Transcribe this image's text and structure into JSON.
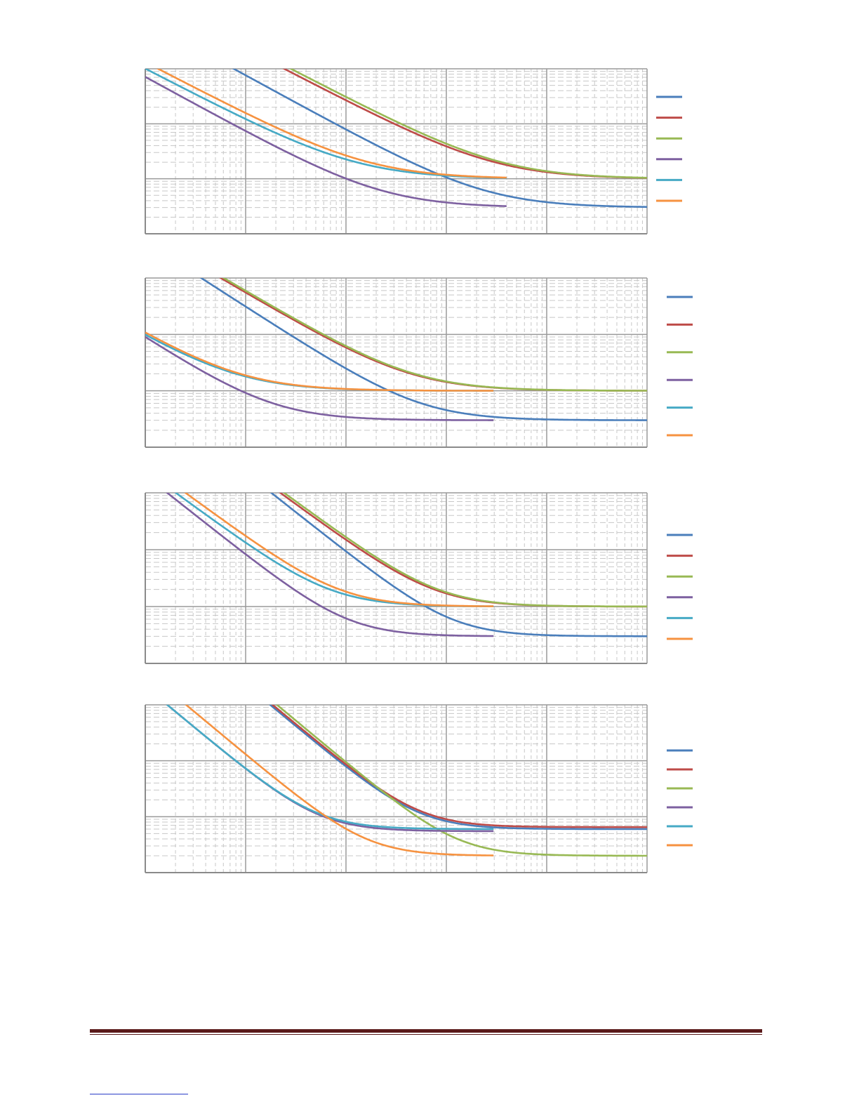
{
  "page": {
    "background": "#ffffff",
    "rule_color": "#5a1a1a",
    "link_color": "#2a3cc7"
  },
  "series_colors": [
    "#4a7ebb",
    "#be4b48",
    "#98b954",
    "#7d60a0",
    "#46aac5",
    "#f69240"
  ],
  "chart_data": [
    {
      "type": "line",
      "title": "",
      "xlabel": "",
      "ylabel": "",
      "xscale": "log",
      "yscale": "log",
      "xlim": [
        1,
        100000
      ],
      "ylim": [
        0.1,
        100
      ],
      "grid": true,
      "legend": "right",
      "series": [
        {
          "color": "#4a7ebb",
          "asymptote": 0.3,
          "x0": 7.6,
          "y0": 100,
          "n": 1.0,
          "xmax": 100000
        },
        {
          "color": "#be4b48",
          "asymptote": 1.0,
          "x0": 24,
          "y0": 100,
          "n": 0.95,
          "xmax": 100000
        },
        {
          "color": "#98b954",
          "asymptote": 1.0,
          "x0": 28,
          "y0": 100,
          "n": 0.95,
          "xmax": 100000
        },
        {
          "color": "#7d60a0",
          "asymptote": 0.3,
          "x0": 0.71,
          "y0": 100,
          "n": 1.0,
          "xmax": 4000
        },
        {
          "color": "#46aac5",
          "asymptote": 1.0,
          "x0": 1.0,
          "y0": 100,
          "n": 0.95,
          "xmax": 4000
        },
        {
          "color": "#f69240",
          "asymptote": 1.0,
          "x0": 1.33,
          "y0": 100,
          "n": 0.95,
          "xmax": 4000
        }
      ]
    },
    {
      "type": "line",
      "title": "",
      "xlabel": "",
      "ylabel": "",
      "xscale": "log",
      "yscale": "log",
      "xlim": [
        1,
        100000
      ],
      "ylim": [
        0.1,
        100
      ],
      "grid": true,
      "legend": "right",
      "series": [
        {
          "color": "#4a7ebb",
          "asymptote": 0.3,
          "x0": 3.6,
          "y0": 100,
          "n": 1.15,
          "xmax": 100000
        },
        {
          "color": "#be4b48",
          "asymptote": 1.0,
          "x0": 5.6,
          "y0": 100,
          "n": 1.05,
          "xmax": 100000
        },
        {
          "color": "#98b954",
          "asymptote": 1.0,
          "x0": 6.0,
          "y0": 100,
          "n": 1.05,
          "xmax": 100000
        },
        {
          "color": "#7d60a0",
          "asymptote": 0.3,
          "x0": 0.12,
          "y0": 100,
          "n": 1.15,
          "xmax": 3000
        },
        {
          "color": "#46aac5",
          "asymptote": 1.0,
          "x0": 0.1,
          "y0": 100,
          "n": 1.05,
          "xmax": 3000
        },
        {
          "color": "#f69240",
          "asymptote": 1.0,
          "x0": 0.11,
          "y0": 100,
          "n": 1.05,
          "xmax": 3000
        }
      ]
    },
    {
      "type": "line",
      "title": "",
      "xlabel": "",
      "ylabel": "",
      "xscale": "log",
      "yscale": "log",
      "xlim": [
        1,
        100000
      ],
      "ylim": [
        0.1,
        100
      ],
      "grid": true,
      "legend": "right",
      "series": [
        {
          "color": "#4a7ebb",
          "asymptote": 0.3,
          "x0": 18,
          "y0": 100,
          "n": 1.4,
          "xmax": 100000
        },
        {
          "color": "#be4b48",
          "asymptote": 1.0,
          "x0": 22,
          "y0": 100,
          "n": 1.3,
          "xmax": 100000
        },
        {
          "color": "#98b954",
          "asymptote": 1.0,
          "x0": 24,
          "y0": 100,
          "n": 1.3,
          "xmax": 100000
        },
        {
          "color": "#7d60a0",
          "asymptote": 0.3,
          "x0": 1.65,
          "y0": 100,
          "n": 1.4,
          "xmax": 3000
        },
        {
          "color": "#46aac5",
          "asymptote": 1.0,
          "x0": 2.0,
          "y0": 100,
          "n": 1.3,
          "xmax": 3000
        },
        {
          "color": "#f69240",
          "asymptote": 1.0,
          "x0": 2.5,
          "y0": 100,
          "n": 1.3,
          "xmax": 3000
        }
      ]
    },
    {
      "type": "line",
      "title": "",
      "xlabel": "",
      "ylabel": "",
      "xscale": "log",
      "yscale": "log",
      "xlim": [
        1,
        100000
      ],
      "ylim": [
        0.1,
        100
      ],
      "grid": true,
      "legend": "right",
      "series": [
        {
          "color": "#4a7ebb",
          "asymptote": 0.6,
          "x0": 17.5,
          "y0": 100,
          "n": 1.5,
          "xmax": 100000
        },
        {
          "color": "#be4b48",
          "asymptote": 0.65,
          "x0": 18.5,
          "y0": 100,
          "n": 1.5,
          "xmax": 100000
        },
        {
          "color": "#98b954",
          "asymptote": 0.2,
          "x0": 20.5,
          "y0": 100,
          "n": 1.5,
          "xmax": 100000
        },
        {
          "color": "#7d60a0",
          "asymptote": 0.55,
          "x0": 1.65,
          "y0": 100,
          "n": 1.5,
          "xmax": 3000
        },
        {
          "color": "#46aac5",
          "asymptote": 0.6,
          "x0": 1.65,
          "y0": 100,
          "n": 1.5,
          "xmax": 3000
        },
        {
          "color": "#f69240",
          "asymptote": 0.2,
          "x0": 2.55,
          "y0": 100,
          "n": 1.5,
          "xmax": 3000
        }
      ]
    }
  ]
}
